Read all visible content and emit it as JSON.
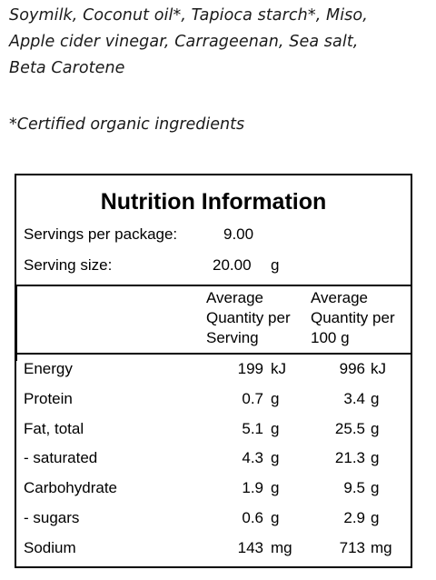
{
  "ingredients": {
    "lines": [
      "Soymilk, Coconut oil*, Tapioca starch*, Miso,",
      "Apple cider vinegar, Carrageenan, Sea salt,",
      "Beta Carotene"
    ],
    "note": "*Certified organic ingredients"
  },
  "panel": {
    "title": "Nutrition Information",
    "servings_label": "Servings per package:",
    "servings_value": "9.00",
    "serving_size_label": "Serving size:",
    "serving_size_value": "20.00",
    "serving_size_unit": "g",
    "col1_header": [
      "Average",
      "Quantity per",
      "Serving"
    ],
    "col2_header": [
      "Average",
      "Quantity per",
      "100 g"
    ],
    "rows": [
      {
        "name": "Energy",
        "serving": "199",
        "serving_unit": "kJ",
        "per100": "996",
        "per100_unit": "kJ"
      },
      {
        "name": "Protein",
        "serving": "0.7",
        "serving_unit": "g",
        "per100": "3.4",
        "per100_unit": "g"
      },
      {
        "name": "Fat, total",
        "serving": "5.1",
        "serving_unit": "g",
        "per100": "25.5",
        "per100_unit": "g"
      },
      {
        "name": "- saturated",
        "serving": "4.3",
        "serving_unit": "g",
        "per100": "21.3",
        "per100_unit": "g"
      },
      {
        "name": "Carbohydrate",
        "serving": "1.9",
        "serving_unit": "g",
        "per100": "9.5",
        "per100_unit": "g"
      },
      {
        "name": "- sugars",
        "serving": "0.6",
        "serving_unit": "g",
        "per100": "2.9",
        "per100_unit": "g"
      },
      {
        "name": "Sodium",
        "serving": "143",
        "serving_unit": "mg",
        "per100": "713",
        "per100_unit": "mg"
      }
    ]
  }
}
